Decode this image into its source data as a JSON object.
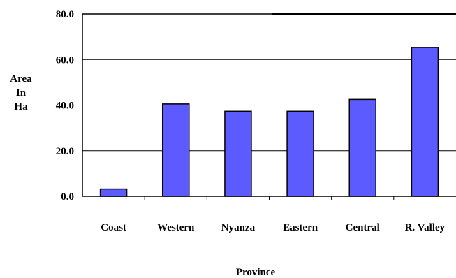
{
  "chart_data": {
    "type": "bar",
    "title": "",
    "xlabel": "Province",
    "ylabel_lines": [
      "Area",
      "In",
      "Ha"
    ],
    "categories": [
      "Coast",
      "Western",
      "Nyanza",
      "Eastern",
      "Central",
      "R. Valley"
    ],
    "values": [
      3.2,
      40.5,
      37.3,
      37.3,
      42.5,
      65.3
    ],
    "ylim": [
      0,
      80
    ],
    "yticks": [
      "0.0",
      "20.0",
      "40.0",
      "60.0",
      "80.0"
    ],
    "grid": true,
    "legend": "none",
    "colors": {
      "bar_fill": "#5b5bff",
      "bar_stroke": "#000000",
      "gridline": "#000000"
    }
  }
}
